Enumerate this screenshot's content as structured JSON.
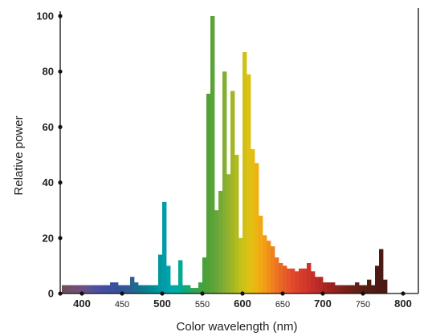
{
  "chart_data": {
    "type": "bar",
    "title": "",
    "xlabel": "Color wavelength (nm)",
    "ylabel": "Relative power",
    "xlim": [
      375,
      785
    ],
    "ylim": [
      0,
      100
    ],
    "x_ticks": [
      {
        "value": 400,
        "label": "400",
        "bold": true
      },
      {
        "value": 450,
        "label": "450",
        "bold": false
      },
      {
        "value": 500,
        "label": "500",
        "bold": true
      },
      {
        "value": 550,
        "label": "550",
        "bold": false
      },
      {
        "value": 600,
        "label": "600",
        "bold": true
      },
      {
        "value": 650,
        "label": "650",
        "bold": false
      },
      {
        "value": 700,
        "label": "700",
        "bold": true
      },
      {
        "value": 750,
        "label": "750",
        "bold": false
      },
      {
        "value": 800,
        "label": "800",
        "bold": true
      }
    ],
    "y_ticks": [
      {
        "value": 0,
        "label": "0"
      },
      {
        "value": 20,
        "label": "20"
      },
      {
        "value": 40,
        "label": "40"
      },
      {
        "value": 60,
        "label": "60"
      },
      {
        "value": 80,
        "label": "80"
      },
      {
        "value": 100,
        "label": "100"
      }
    ],
    "bin_width_nm": 5,
    "series": [
      {
        "x": [
          375,
          380,
          385,
          390,
          395,
          400,
          405,
          410,
          415,
          420,
          425,
          430,
          435,
          440,
          445,
          450,
          455,
          460,
          465,
          470,
          475,
          480,
          485,
          490,
          495,
          500,
          505,
          510,
          515,
          520,
          525,
          530,
          535,
          540,
          545,
          550,
          555,
          560,
          565,
          570,
          575,
          580,
          585,
          590,
          595,
          600,
          605,
          610,
          615,
          620,
          625,
          630,
          635,
          640,
          645,
          650,
          655,
          660,
          665,
          670,
          675,
          680,
          685,
          690,
          695,
          700,
          705,
          710,
          715,
          720,
          725,
          730,
          735,
          740,
          745,
          750,
          755,
          760,
          765,
          770,
          775
        ],
        "values": [
          3,
          3,
          3,
          3,
          3,
          3,
          3,
          3,
          3,
          3,
          3,
          3,
          4,
          4,
          3,
          3,
          3,
          6,
          4,
          3,
          3,
          3,
          3,
          3,
          14,
          33,
          10,
          3,
          3,
          12,
          3,
          3,
          2,
          2,
          4,
          13,
          72,
          100,
          30,
          37,
          80,
          43,
          73,
          50,
          20,
          87,
          79,
          52,
          47,
          28,
          21,
          19,
          17,
          13,
          11,
          10,
          9,
          9,
          8,
          9,
          9,
          11,
          8,
          6,
          6,
          4,
          4,
          4,
          3,
          3,
          3,
          3,
          3,
          4,
          3,
          3,
          5,
          3,
          10,
          16,
          5
        ],
        "colors": [
          "#6d4e5e",
          "#6e4f64",
          "#6f4f6c",
          "#6f4f75",
          "#6e4f7e",
          "#6a5087",
          "#62508f",
          "#575096",
          "#4f509b",
          "#484f9e",
          "#434f9f",
          "#404e9f",
          "#3d4f9d",
          "#3a509b",
          "#375398",
          "#335795",
          "#2e5c93",
          "#276291",
          "#1f6a90",
          "#16738f",
          "#0e7c90",
          "#078491",
          "#028b95",
          "#00929a",
          "#0098a0",
          "#009ca7",
          "#00a2ab",
          "#00a8ad",
          "#00aaa6",
          "#00aa94",
          "#0aa97f",
          "#1aa76c",
          "#27a55b",
          "#33a44d",
          "#3ea343",
          "#47a23b",
          "#50a238",
          "#5aa338",
          "#66a639",
          "#74aa37",
          "#83ae33",
          "#92b22d",
          "#a2b626",
          "#b2bb1f",
          "#c2c01a",
          "#d1c117",
          "#ddc115",
          "#e6bc13",
          "#edb313",
          "#f1a815",
          "#f39c18",
          "#f28f1b",
          "#f0811f",
          "#ed7422",
          "#ea6825",
          "#e75d27",
          "#e45329",
          "#e04a2a",
          "#dc432b",
          "#d73d2b",
          "#d2382b",
          "#cc332a",
          "#c52f29",
          "#bd2b28",
          "#b42826",
          "#aa2524",
          "#a02322",
          "#962220",
          "#8c211e",
          "#82201c",
          "#79201a",
          "#712018",
          "#692017",
          "#622016",
          "#5c1f15",
          "#571e15",
          "#531d14",
          "#501c14",
          "#4e1b14",
          "#4c1a14",
          "#4b1914"
        ]
      }
    ]
  }
}
